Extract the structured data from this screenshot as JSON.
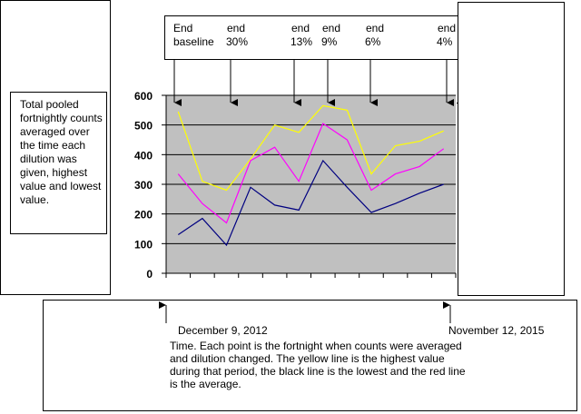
{
  "chart_data": {
    "type": "line",
    "categories": [
      null,
      null,
      null,
      null,
      null,
      null,
      null,
      null,
      null,
      null,
      null,
      null
    ],
    "series": [
      {
        "color": "#ffff00",
        "values": [
          545,
          310,
          280,
          385,
          500,
          475,
          565,
          550,
          335,
          430,
          445,
          480
        ]
      },
      {
        "color": "#ff00ff",
        "values": [
          335,
          235,
          170,
          380,
          425,
          310,
          505,
          450,
          280,
          335,
          360,
          420
        ]
      },
      {
        "color": "#000080",
        "values": [
          130,
          185,
          95,
          290,
          230,
          213,
          380,
          290,
          205,
          235,
          270,
          300
        ]
      }
    ],
    "ylim": [
      0,
      600
    ],
    "yticks": [
      0,
      100,
      200,
      300,
      400,
      500,
      600
    ],
    "grid": true,
    "annotations": {
      "markers": [
        {
          "line1": "End",
          "line2": "baseline"
        },
        {
          "line1": "end",
          "line2": "30%"
        },
        {
          "line1": "end",
          "line2": "13%"
        },
        {
          "line1": "end",
          "line2": "9%"
        },
        {
          "line1": "end",
          "line2": "6%"
        },
        {
          "line1": "end",
          "line2": "4%"
        }
      ],
      "left_note": "Total pooled fortnightly counts averaged over the time each dilution was given, highest value and lowest value.",
      "start_date": "December 9, 2012",
      "end_date": "November 12, 2015",
      "caption": "Time.  Each point is the fortnight when counts were averaged and dilution changed.  The yellow line is the highest value during that period, the black line is the lowest and the red line is the average."
    }
  }
}
